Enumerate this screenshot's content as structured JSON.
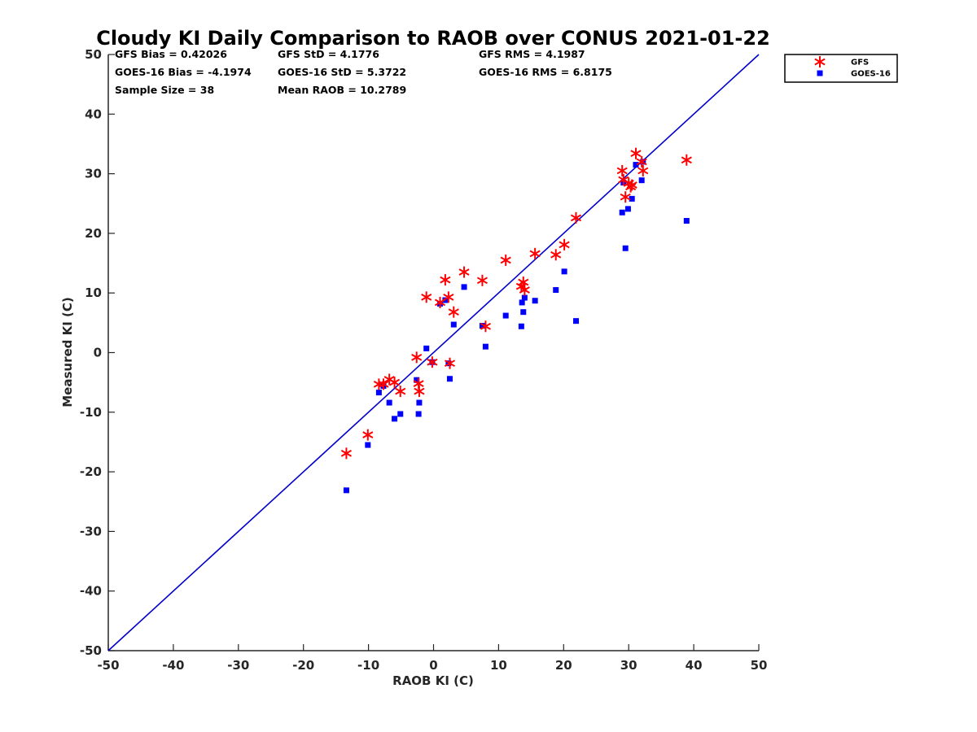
{
  "chart_data": {
    "type": "scatter",
    "title": "Cloudy KI Daily Comparison to RAOB over CONUS 2021-01-22",
    "xlabel": "RAOB KI (C)",
    "ylabel": "Measured KI (C)",
    "xlim": [
      -50,
      50
    ],
    "ylim": [
      -50,
      50
    ],
    "xticks": [
      "-50",
      "-40",
      "-30",
      "-20",
      "-10",
      "0",
      "10",
      "20",
      "30",
      "40",
      "50"
    ],
    "yticks": [
      "50",
      "40",
      "30",
      "20",
      "10",
      "0",
      "-10",
      "-20",
      "-30",
      "-40",
      "-50"
    ],
    "grid": false,
    "legend_position": "top-right, outside plot",
    "reference_line": {
      "x": [
        -50,
        50
      ],
      "y": [
        -50,
        50
      ],
      "color": "#0000cc"
    },
    "stats": [
      "GFS Bias = 0.42026",
      "GFS StD = 4.1776",
      "GFS RMS = 4.1987",
      "GOES-16 Bias = -4.1974",
      "GOES-16 StD = 5.3722",
      "GOES-16 RMS = 6.8175",
      "Sample Size = 38",
      "Mean RAOB = 10.2789"
    ],
    "series": [
      {
        "name": "GFS",
        "marker": "asterisk",
        "color": "#ff0000",
        "points": [
          [
            -13.4,
            -16.9
          ],
          [
            -10.1,
            -13.8
          ],
          [
            -8.4,
            -5.3
          ],
          [
            -7.7,
            -5.3
          ],
          [
            -6.8,
            -4.5
          ],
          [
            -6.0,
            -5.0
          ],
          [
            -5.1,
            -6.5
          ],
          [
            -2.6,
            -0.8
          ],
          [
            -2.3,
            -5.2
          ],
          [
            -2.2,
            -6.5
          ],
          [
            -1.1,
            9.3
          ],
          [
            -0.2,
            -1.6
          ],
          [
            1.0,
            8.4
          ],
          [
            1.8,
            12.2
          ],
          [
            2.3,
            9.3
          ],
          [
            2.5,
            -1.8
          ],
          [
            3.1,
            6.8
          ],
          [
            4.7,
            13.5
          ],
          [
            7.5,
            12.1
          ],
          [
            8.0,
            4.4
          ],
          [
            11.1,
            15.5
          ],
          [
            13.5,
            11.1
          ],
          [
            13.8,
            11.8
          ],
          [
            14.0,
            10.5
          ],
          [
            15.6,
            16.6
          ],
          [
            18.8,
            16.4
          ],
          [
            20.1,
            18.1
          ],
          [
            21.9,
            22.6
          ],
          [
            29.0,
            30.5
          ],
          [
            29.2,
            29.0
          ],
          [
            29.5,
            26.1
          ],
          [
            30.0,
            28.4
          ],
          [
            30.3,
            27.8
          ],
          [
            30.5,
            28.1
          ],
          [
            31.1,
            33.4
          ],
          [
            32.0,
            32.0
          ],
          [
            32.2,
            30.5
          ],
          [
            38.9,
            32.3
          ]
        ]
      },
      {
        "name": "GOES-16",
        "marker": "square",
        "color": "#0000ff",
        "points": [
          [
            -13.4,
            -23.1
          ],
          [
            -10.1,
            -15.5
          ],
          [
            -8.4,
            -6.7
          ],
          [
            -7.7,
            -5.6
          ],
          [
            -6.8,
            -8.4
          ],
          [
            -6.0,
            -11.1
          ],
          [
            -5.1,
            -10.3
          ],
          [
            -2.6,
            -4.6
          ],
          [
            -2.3,
            -10.3
          ],
          [
            -2.2,
            -8.4
          ],
          [
            -1.1,
            0.7
          ],
          [
            -0.2,
            -1.6
          ],
          [
            1.0,
            8.2
          ],
          [
            1.8,
            8.8
          ],
          [
            2.3,
            -1.8
          ],
          [
            2.5,
            -4.4
          ],
          [
            3.1,
            4.7
          ],
          [
            4.7,
            11.0
          ],
          [
            7.5,
            4.5
          ],
          [
            8.0,
            1.0
          ],
          [
            11.1,
            6.2
          ],
          [
            13.5,
            4.4
          ],
          [
            13.6,
            8.4
          ],
          [
            13.8,
            6.8
          ],
          [
            14.0,
            9.2
          ],
          [
            15.6,
            8.7
          ],
          [
            18.8,
            10.5
          ],
          [
            20.1,
            13.6
          ],
          [
            21.9,
            5.3
          ],
          [
            29.0,
            23.5
          ],
          [
            29.2,
            28.5
          ],
          [
            29.5,
            17.5
          ],
          [
            29.9,
            24.1
          ],
          [
            30.5,
            25.8
          ],
          [
            31.1,
            31.5
          ],
          [
            32.0,
            28.9
          ],
          [
            32.2,
            32.0
          ],
          [
            38.9,
            22.1
          ]
        ]
      }
    ]
  }
}
